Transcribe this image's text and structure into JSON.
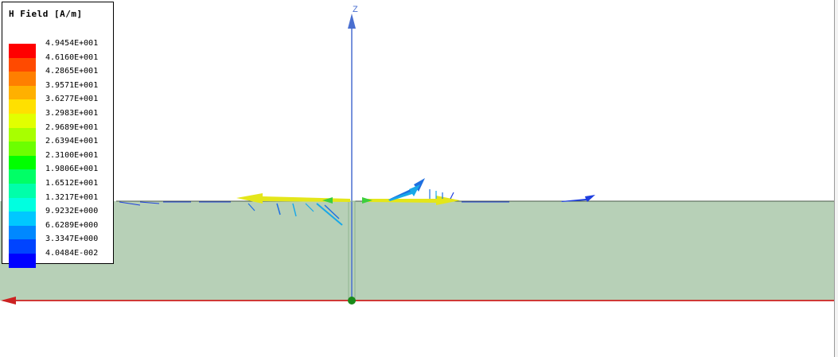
{
  "legend": {
    "title": "H Field [A/m]",
    "entries": [
      {
        "label": "4.9454E+001",
        "color": "#ff0000"
      },
      {
        "label": "4.6160E+001",
        "color": "#ff4a00"
      },
      {
        "label": "4.2865E+001",
        "color": "#ff7f00"
      },
      {
        "label": "3.9571E+001",
        "color": "#ffb000"
      },
      {
        "label": "3.6277E+001",
        "color": "#ffe000"
      },
      {
        "label": "3.2983E+001",
        "color": "#e2ff00"
      },
      {
        "label": "2.9689E+001",
        "color": "#a8ff00"
      },
      {
        "label": "2.6394E+001",
        "color": "#6cff00"
      },
      {
        "label": "2.3100E+001",
        "color": "#00ff00"
      },
      {
        "label": "1.9806E+001",
        "color": "#00ff66"
      },
      {
        "label": "1.6512E+001",
        "color": "#00ffaa"
      },
      {
        "label": "1.3217E+001",
        "color": "#00ffe0"
      },
      {
        "label": "9.9232E+000",
        "color": "#00c8ff"
      },
      {
        "label": "6.6289E+000",
        "color": "#0088ff"
      },
      {
        "label": "3.3347E+000",
        "color": "#0044ff"
      },
      {
        "label": "4.0484E-002",
        "color": "#0000ff"
      }
    ]
  },
  "axes": {
    "z_label": "Z",
    "z_color": "#4a6fd0",
    "x_color": "#cc0000",
    "origin_color": "#1a8a1a"
  },
  "colors": {
    "substrate": "#b7d0b7",
    "substrate_edge": "#4a5a4a",
    "arrow_yellow": "#e4e61a",
    "arrow_blue": "#1f6fe0",
    "arrow_cyan": "#18a8e8"
  }
}
